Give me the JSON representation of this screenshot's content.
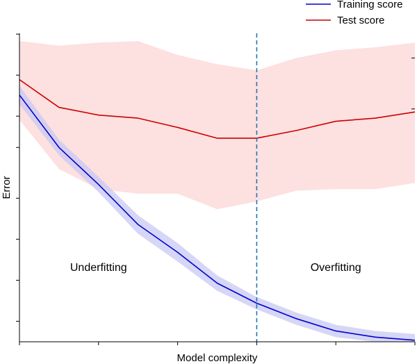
{
  "chart_data": {
    "type": "line",
    "title": "",
    "xlabel": "Model complexity",
    "ylabel": "Error",
    "xlim": [
      0,
      10
    ],
    "ylim": [
      0,
      10
    ],
    "x": [
      0,
      1,
      2,
      3,
      4,
      5,
      6,
      7,
      8,
      9,
      10
    ],
    "series": [
      {
        "name": "Training score",
        "color": "#0000cc",
        "band_color": "#c8c8f4",
        "values": [
          8.0,
          6.3,
          5.1,
          3.8,
          2.9,
          1.9,
          1.25,
          0.75,
          0.35,
          0.15,
          0.05
        ],
        "upper": [
          8.3,
          6.55,
          5.35,
          4.1,
          3.2,
          2.15,
          1.45,
          0.95,
          0.55,
          0.35,
          0.25
        ],
        "lower": [
          7.7,
          6.05,
          4.85,
          3.5,
          2.6,
          1.65,
          1.05,
          0.55,
          0.15,
          0.0,
          0.0
        ]
      },
      {
        "name": "Test score",
        "color": "#cc0000",
        "band_color": "#fde0e0",
        "values": [
          8.5,
          7.6,
          7.35,
          7.25,
          6.95,
          6.6,
          6.6,
          6.85,
          7.15,
          7.25,
          7.45
        ],
        "upper": [
          9.75,
          9.6,
          9.7,
          9.75,
          9.3,
          9.0,
          8.8,
          9.2,
          9.45,
          9.55,
          9.7
        ],
        "lower": [
          7.2,
          5.6,
          4.95,
          4.8,
          4.8,
          4.3,
          4.55,
          4.9,
          4.95,
          4.95,
          5.15
        ]
      }
    ],
    "vline": {
      "x": 6,
      "color": "#1f77b4",
      "style": "dashed"
    },
    "annotations": [
      {
        "text": "Underfitting",
        "x": 2,
        "y": 2.3
      },
      {
        "text": "Overfitting",
        "x": 8,
        "y": 2.3
      }
    ],
    "legend": {
      "placement": "top-right",
      "entries": [
        "Training score",
        "Test score"
      ]
    },
    "grid": false
  }
}
